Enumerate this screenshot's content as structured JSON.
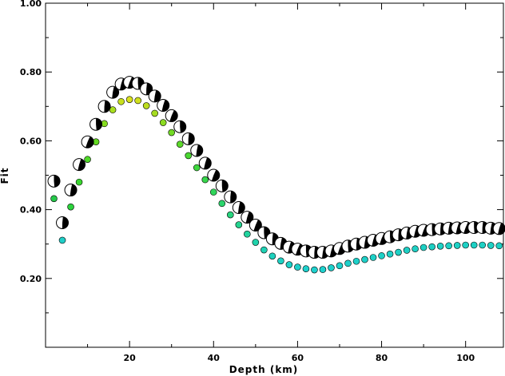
{
  "chart_data": {
    "type": "scatter",
    "xlabel": "Depth (km)",
    "ylabel": "Fit",
    "xlim": [
      0,
      109
    ],
    "ylim": [
      0,
      1.0
    ],
    "x_ticks": [
      20,
      40,
      60,
      80,
      100
    ],
    "y_ticks": [
      0.2,
      0.4,
      0.6,
      0.8,
      1.0
    ],
    "x_tick_labels": [
      "20",
      "40",
      "60",
      "80",
      "100"
    ],
    "y_tick_labels": [
      "0.20",
      "0.40",
      "0.60",
      "0.80",
      "1.00"
    ],
    "grid": false,
    "legend": "none",
    "series": [
      {
        "marker": "focal-mechanism",
        "color": "#000000",
        "x": [
          2,
          4,
          6,
          8,
          10,
          12,
          14,
          16,
          18,
          20,
          22,
          24,
          26,
          28,
          30,
          32,
          34,
          36,
          38,
          40,
          42,
          44,
          46,
          48,
          50,
          52,
          54,
          56,
          58,
          60,
          62,
          64,
          66,
          68,
          70,
          72,
          74,
          76,
          78,
          80,
          82,
          84,
          86,
          88,
          90,
          92,
          94,
          96,
          98,
          100,
          102,
          104,
          106,
          108
        ],
        "y": [
          0.483,
          0.362,
          0.457,
          0.531,
          0.597,
          0.648,
          0.7,
          0.741,
          0.765,
          0.77,
          0.767,
          0.751,
          0.73,
          0.703,
          0.673,
          0.641,
          0.606,
          0.572,
          0.535,
          0.5,
          0.469,
          0.437,
          0.406,
          0.378,
          0.355,
          0.333,
          0.315,
          0.302,
          0.291,
          0.285,
          0.28,
          0.276,
          0.276,
          0.28,
          0.287,
          0.294,
          0.3,
          0.305,
          0.311,
          0.316,
          0.321,
          0.327,
          0.332,
          0.337,
          0.34,
          0.342,
          0.344,
          0.346,
          0.347,
          0.348,
          0.348,
          0.348,
          0.346,
          0.345
        ]
      },
      {
        "marker": "circle",
        "x": [
          2,
          4,
          6,
          8,
          10,
          12,
          14,
          16,
          18,
          20,
          22,
          24,
          26,
          28,
          30,
          32,
          34,
          36,
          38,
          40,
          42,
          44,
          46,
          48,
          50,
          52,
          54,
          56,
          58,
          60,
          62,
          64,
          66,
          68,
          70,
          72,
          74,
          76,
          78,
          80,
          82,
          84,
          86,
          88,
          90,
          92,
          94,
          96,
          98,
          100,
          102,
          104,
          106,
          108
        ],
        "y": [
          0.432,
          0.311,
          0.408,
          0.48,
          0.546,
          0.597,
          0.65,
          0.69,
          0.714,
          0.72,
          0.717,
          0.702,
          0.68,
          0.653,
          0.624,
          0.59,
          0.557,
          0.522,
          0.487,
          0.451,
          0.418,
          0.385,
          0.356,
          0.329,
          0.305,
          0.283,
          0.265,
          0.251,
          0.24,
          0.233,
          0.228,
          0.225,
          0.226,
          0.231,
          0.237,
          0.244,
          0.25,
          0.255,
          0.261,
          0.266,
          0.271,
          0.276,
          0.282,
          0.286,
          0.29,
          0.292,
          0.294,
          0.295,
          0.296,
          0.297,
          0.297,
          0.297,
          0.296,
          0.295
        ],
        "colors": [
          "#25c84a",
          "#20cfc8",
          "#2bd23c",
          "#3ad630",
          "#4fd828",
          "#63da22",
          "#86dc1f",
          "#a8de1e",
          "#c8e01e",
          "#d8e01e",
          "#d0e01e",
          "#bcdd1f",
          "#a6dc20",
          "#8cdb22",
          "#72da25",
          "#5cd92a",
          "#4ad832",
          "#3fd73e",
          "#37d64c",
          "#30d65a",
          "#2bd56c",
          "#27d47e",
          "#24d38f",
          "#22d39e",
          "#20d2ab",
          "#1fd2b5",
          "#1ed1bd",
          "#1ed1c3",
          "#1ed0c7",
          "#1ed0ca",
          "#1ed0cc",
          "#1ed0cd",
          "#1ed0cd",
          "#1ed0cc",
          "#1ed0cb",
          "#1ed0ca",
          "#1ed0c9",
          "#1ed0c8",
          "#1ed0c7",
          "#1ed0c6",
          "#1ed0c6",
          "#1ed0c5",
          "#1ed0c5",
          "#1ed0c4",
          "#1ed0c4",
          "#1ed0c4",
          "#1ed0c4",
          "#1ed0c4",
          "#1ed0c4",
          "#1ed0c4",
          "#1ed0c4",
          "#1ed0c4",
          "#1ed0c4",
          "#1ed0c4"
        ]
      }
    ]
  }
}
